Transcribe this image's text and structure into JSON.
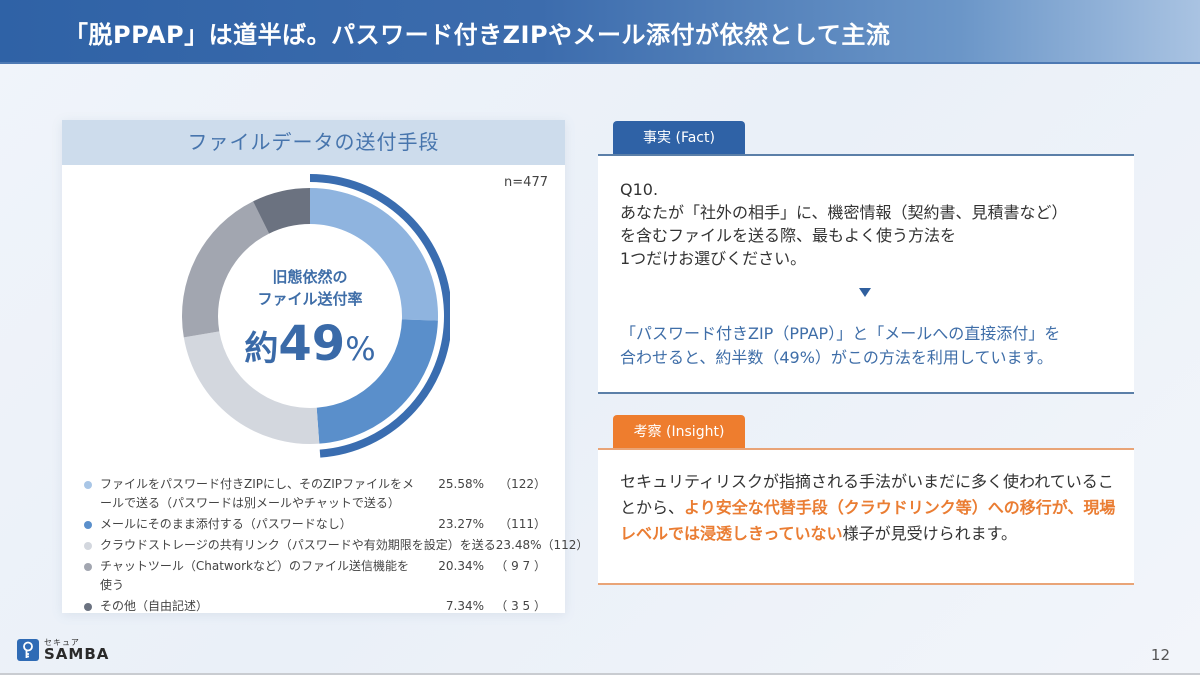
{
  "header": {
    "title": "「脱PPAP」は道半ば。パスワード付きZIPやメール添付が依然として主流"
  },
  "chart_card": {
    "title": "ファイルデータの送付手段",
    "sample_size": "n=477",
    "center": {
      "line1": "旧態依然の",
      "line2": "ファイル送付率",
      "prefix": "約",
      "number": "49",
      "suffix": "%"
    },
    "legend": [
      {
        "label": "ファイルをパスワード付きZIPにし、そのZIPファイルをメールで送る（パスワードは別メールやチャットで送る）",
        "value": "25.58%",
        "count": "（122）",
        "color": "#a9c6e6"
      },
      {
        "label": "メールにそのまま添付する（パスワードなし）",
        "value": "23.27%",
        "count": "（111）",
        "color": "#5a8fcb"
      },
      {
        "label": "クラウドストレージの共有リンク（パスワードや有効期限を設定）を送る",
        "value": "23.48%",
        "count": "（112）",
        "color": "#d3d7de"
      },
      {
        "label": "チャットツール（Chatworkなど）のファイル送信機能を使う",
        "value": "20.34%",
        "count": "（ 9 7 ）",
        "color": "#a2a6b0"
      },
      {
        "label": "その他（自由記述）",
        "value": "7.34%",
        "count": "（ 3 5 ）",
        "color": "#6b7280"
      }
    ]
  },
  "chart_data": {
    "type": "pie",
    "title": "ファイルデータの送付手段",
    "subtitle": "n=477",
    "categories": [
      "ファイルをパスワード付きZIPにし、そのZIPファイルをメールで送る（パスワードは別メールやチャットで送る）",
      "メールにそのまま添付する（パスワードなし）",
      "クラウドストレージの共有リンク（パスワードや有効期限を設定）を送る",
      "チャットツール（Chatworkなど）のファイル送信機能を使う",
      "その他（自由記述）"
    ],
    "values": [
      25.58,
      23.27,
      23.48,
      20.34,
      7.34
    ],
    "counts": [
      122,
      111,
      112,
      97,
      35
    ],
    "colors": [
      "#8fb4df",
      "#5a8fcb",
      "#d3d7de",
      "#a2a6b0",
      "#6b7280"
    ],
    "annotation": "旧態依然のファイル送付率 約49%",
    "donut": true,
    "highlight_arc": "first two segments (49%)"
  },
  "fact": {
    "tab_label": "事実 (Fact)",
    "question_lines": [
      "Q10.",
      "あなたが「社外の相手」に、機密情報（契約書、見積書など）",
      "を含むファイルを送る際、最もよく使う方法を",
      "1つだけお選びください。"
    ],
    "conclusion_lines": [
      "「パスワード付きZIP（PPAP）」と「メールへの直接添付」を",
      "合わせると、約半数（49%）がこの方法を利用しています。"
    ]
  },
  "insight": {
    "tab_label": "考察 (Insight)",
    "text_before": "セキュリティリスクが指摘される手法がいまだに多く使われていることから、",
    "text_highlight": "より安全な代替手段（クラウドリンク等）への移行が、現場レベルでは浸透しきっていない",
    "text_after": "様子が見受けられます。"
  },
  "footer": {
    "logo_kana": "セキュア",
    "logo_brand": "SAMBA",
    "page_number": "12"
  },
  "colors": {
    "primary_blue": "#2f62a6",
    "accent_orange": "#ee7d2e"
  }
}
